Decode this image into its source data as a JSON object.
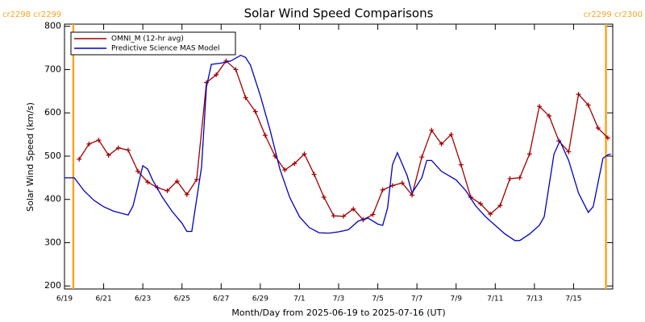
{
  "chart_data": {
    "type": "line",
    "title": "Solar Wind Speed Comparisons",
    "xlabel": "Month/Day from 2025-06-19 to 2025-07-16 (UT)",
    "ylabel": "Solar Wind Speed (km/s)",
    "xlim": [
      0,
      28
    ],
    "ylim": [
      193,
      805
    ],
    "xticks": [
      {
        "value": 0,
        "label": "6/19"
      },
      {
        "value": 2,
        "label": "6/21"
      },
      {
        "value": 4,
        "label": "6/23"
      },
      {
        "value": 6,
        "label": "6/25"
      },
      {
        "value": 8,
        "label": "6/27"
      },
      {
        "value": 10,
        "label": "6/29"
      },
      {
        "value": 12,
        "label": "7/1"
      },
      {
        "value": 14,
        "label": "7/3"
      },
      {
        "value": 16,
        "label": "7/5"
      },
      {
        "value": 18,
        "label": "7/7"
      },
      {
        "value": 20,
        "label": "7/9"
      },
      {
        "value": 22,
        "label": "7/11"
      },
      {
        "value": 24,
        "label": "7/13"
      },
      {
        "value": 26,
        "label": "7/15"
      }
    ],
    "yticks": [
      200,
      300,
      400,
      500,
      600,
      700,
      800
    ],
    "legend": "upper left",
    "markers": [
      {
        "x": 0.45,
        "label": "cr2298 cr2299",
        "color": "#f5a623"
      },
      {
        "x": 27.65,
        "label": "cr2299 cr2300",
        "color": "#f5a623"
      }
    ],
    "series": [
      {
        "name": "OMNI_M (12-hr avg)",
        "color": "#a00000",
        "marker": "+",
        "x": [
          0.75,
          1.25,
          1.75,
          2.25,
          2.75,
          3.25,
          3.75,
          4.25,
          4.75,
          5.25,
          5.75,
          6.25,
          6.75,
          7.25,
          7.75,
          8.25,
          8.75,
          9.25,
          9.75,
          10.25,
          10.75,
          11.25,
          11.75,
          12.25,
          12.75,
          13.25,
          13.75,
          14.25,
          14.75,
          15.25,
          15.75,
          16.25,
          16.75,
          17.25,
          17.75,
          18.25,
          18.75,
          19.25,
          19.75,
          20.25,
          20.75,
          21.25,
          21.75,
          22.25,
          22.75,
          23.25,
          23.75,
          24.25,
          24.75,
          25.25,
          25.75,
          26.25,
          26.75,
          27.25,
          27.75
        ],
        "values": [
          493,
          528,
          537,
          502,
          519,
          514,
          465,
          440,
          427,
          420,
          442,
          411,
          446,
          670,
          688,
          720,
          700,
          635,
          603,
          548,
          500,
          468,
          483,
          505,
          458,
          405,
          362,
          361,
          378,
          353,
          365,
          422,
          432,
          438,
          410,
          498,
          560,
          528,
          550,
          480,
          405,
          390,
          366,
          386,
          448,
          450,
          505,
          615,
          593,
          535,
          510,
          643,
          618,
          565,
          542
        ]
      },
      {
        "name": "Predictive Science MAS Model",
        "color": "#0000c0",
        "marker": null,
        "x": [
          0,
          0.5,
          1,
          1.5,
          2,
          2.5,
          3,
          3.25,
          3.5,
          4,
          4.25,
          4.5,
          5,
          5.5,
          6,
          6.25,
          6.5,
          7,
          7.25,
          7.5,
          8,
          8.5,
          9,
          9.25,
          9.5,
          10,
          10.5,
          11,
          11.5,
          12,
          12.5,
          13,
          13.5,
          14,
          14.5,
          15,
          15.5,
          16,
          16.25,
          16.5,
          16.75,
          17,
          17.5,
          17.75,
          18.25,
          18.5,
          18.75,
          19.25,
          20,
          20.5,
          21,
          21.5,
          22,
          22.5,
          23,
          23.25,
          23.75,
          24.25,
          24.5,
          25,
          25.3,
          25.75,
          26.25,
          26.75,
          27,
          27.5,
          27.75,
          27.9
        ],
        "values": [
          450,
          450,
          420,
          398,
          383,
          373,
          367,
          364,
          385,
          478,
          470,
          445,
          405,
          372,
          345,
          326,
          326,
          475,
          660,
          712,
          715,
          720,
          733,
          728,
          710,
          640,
          560,
          470,
          405,
          360,
          335,
          323,
          322,
          325,
          330,
          350,
          357,
          343,
          340,
          380,
          480,
          508,
          455,
          415,
          450,
          490,
          490,
          465,
          445,
          420,
          385,
          360,
          340,
          320,
          305,
          305,
          320,
          340,
          360,
          505,
          535,
          490,
          415,
          370,
          383,
          495,
          503,
          505
        ]
      }
    ]
  }
}
